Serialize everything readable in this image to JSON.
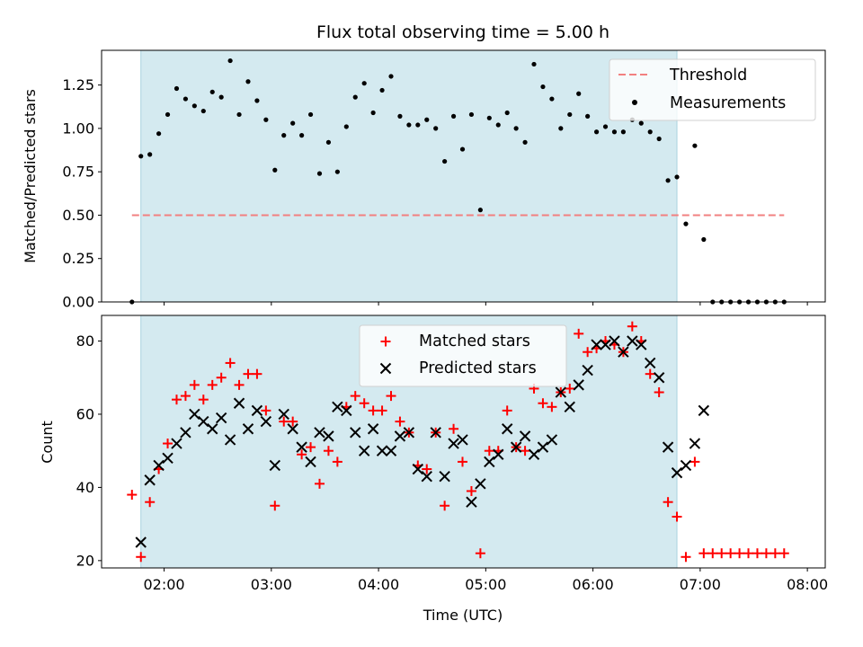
{
  "title": "Flux total observing time = 5.00 h",
  "colors": {
    "shade": "#d4eaf0",
    "shade_edge": "#a9d3de",
    "threshold": "#f28080",
    "measurement": "#000000",
    "matched": "#ff0000",
    "predicted": "#000000"
  },
  "chart_data": [
    {
      "type": "scatter",
      "ylabel": "Matched/Predicted stars",
      "xlabel": "",
      "x_unit": "hours UTC",
      "xlim": [
        "01:25",
        "08:10"
      ],
      "ylim": [
        0,
        1.45
      ],
      "yticks": [
        0.0,
        0.25,
        0.5,
        0.75,
        1.0,
        1.25
      ],
      "ytick_labels": [
        "0.00",
        "0.25",
        "0.50",
        "0.75",
        "1.00",
        "1.25"
      ],
      "shaded_interval": [
        "01:47",
        "06:47"
      ],
      "legend": {
        "position": "upper-right",
        "entries": [
          "Threshold",
          "Measurements"
        ]
      },
      "threshold": {
        "name": "Threshold",
        "y": 0.5,
        "x": [
          "01:42",
          "07:47"
        ],
        "style": "dashed"
      },
      "series": [
        {
          "name": "Measurements",
          "x": [
            "01:42",
            "01:47",
            "01:52",
            "01:57",
            "02:02",
            "02:07",
            "02:12",
            "02:17",
            "02:22",
            "02:27",
            "02:32",
            "02:37",
            "02:42",
            "02:47",
            "02:52",
            "02:57",
            "03:02",
            "03:07",
            "03:12",
            "03:17",
            "03:22",
            "03:27",
            "03:32",
            "03:37",
            "03:42",
            "03:47",
            "03:52",
            "03:57",
            "04:02",
            "04:07",
            "04:12",
            "04:17",
            "04:22",
            "04:27",
            "04:32",
            "04:37",
            "04:42",
            "04:47",
            "04:52",
            "04:57",
            "05:02",
            "05:07",
            "05:12",
            "05:17",
            "05:22",
            "05:27",
            "05:32",
            "05:37",
            "05:42",
            "05:47",
            "05:52",
            "05:57",
            "06:02",
            "06:07",
            "06:12",
            "06:17",
            "06:22",
            "06:27",
            "06:32",
            "06:37",
            "06:42",
            "06:47",
            "06:52",
            "06:57",
            "07:02",
            "07:07",
            "07:12",
            "07:17",
            "07:22",
            "07:27",
            "07:32",
            "07:37",
            "07:42",
            "07:47"
          ],
          "y": [
            0.0,
            0.84,
            0.85,
            0.97,
            1.08,
            1.23,
            1.17,
            1.13,
            1.1,
            1.21,
            1.18,
            1.39,
            1.08,
            1.27,
            1.16,
            1.05,
            0.76,
            0.96,
            1.03,
            0.96,
            1.08,
            0.74,
            0.92,
            0.75,
            1.01,
            1.18,
            1.26,
            1.09,
            1.22,
            1.3,
            1.07,
            1.02,
            1.02,
            1.05,
            1.0,
            0.81,
            1.07,
            0.88,
            1.08,
            0.53,
            1.06,
            1.02,
            1.09,
            1.0,
            0.92,
            1.37,
            1.24,
            1.17,
            1.0,
            1.08,
            1.2,
            1.07,
            0.98,
            1.01,
            0.98,
            0.98,
            1.05,
            1.03,
            0.98,
            0.94,
            0.7,
            0.72,
            0.45,
            0.9,
            0.36,
            0.0,
            0.0,
            0.0,
            0.0,
            0.0,
            0.0,
            0.0,
            0.0,
            0.0
          ]
        }
      ]
    },
    {
      "type": "scatter",
      "ylabel": "Count",
      "xlabel": "Time (UTC)",
      "x_unit": "hours UTC",
      "xlim": [
        "01:25",
        "08:10"
      ],
      "xticks": [
        "02:00",
        "03:00",
        "04:00",
        "05:00",
        "06:00",
        "07:00",
        "08:00"
      ],
      "ylim": [
        18,
        87
      ],
      "yticks": [
        20,
        40,
        60,
        80
      ],
      "ytick_labels": [
        "20",
        "40",
        "60",
        "80"
      ],
      "shaded_interval": [
        "01:47",
        "06:47"
      ],
      "legend": {
        "position": "upper-center",
        "entries": [
          "Matched stars",
          "Predicted stars"
        ]
      },
      "series": [
        {
          "name": "Matched stars",
          "marker": "plus",
          "x": [
            "01:42",
            "01:47",
            "01:52",
            "01:57",
            "02:02",
            "02:07",
            "02:12",
            "02:17",
            "02:22",
            "02:27",
            "02:32",
            "02:37",
            "02:42",
            "02:47",
            "02:52",
            "02:57",
            "03:02",
            "03:07",
            "03:12",
            "03:17",
            "03:22",
            "03:27",
            "03:32",
            "03:37",
            "03:42",
            "03:47",
            "03:52",
            "03:57",
            "04:02",
            "04:07",
            "04:12",
            "04:17",
            "04:22",
            "04:27",
            "04:32",
            "04:37",
            "04:42",
            "04:47",
            "04:52",
            "04:57",
            "05:02",
            "05:07",
            "05:12",
            "05:17",
            "05:22",
            "05:27",
            "05:32",
            "05:37",
            "05:42",
            "05:47",
            "05:52",
            "05:57",
            "06:02",
            "06:07",
            "06:12",
            "06:17",
            "06:22",
            "06:27",
            "06:32",
            "06:37",
            "06:42",
            "06:47",
            "06:52",
            "06:57",
            "07:02",
            "07:07",
            "07:12",
            "07:17",
            "07:22",
            "07:27",
            "07:32",
            "07:37",
            "07:42",
            "07:47"
          ],
          "y": [
            38,
            21,
            36,
            45,
            52,
            64,
            65,
            68,
            64,
            68,
            70,
            74,
            68,
            71,
            71,
            61,
            35,
            58,
            58,
            49,
            51,
            41,
            50,
            47,
            62,
            65,
            63,
            61,
            61,
            65,
            58,
            55,
            46,
            45,
            55,
            35,
            56,
            47,
            39,
            22,
            50,
            50,
            61,
            51,
            50,
            67,
            63,
            62,
            66,
            67,
            82,
            77,
            78,
            80,
            79,
            77,
            84,
            80,
            71,
            66,
            36,
            32,
            21,
            47,
            22,
            22,
            22,
            22,
            22,
            22,
            22,
            22,
            22,
            22
          ]
        },
        {
          "name": "Predicted stars",
          "marker": "x",
          "x": [
            "01:47",
            "01:52",
            "01:57",
            "02:02",
            "02:07",
            "02:12",
            "02:17",
            "02:22",
            "02:27",
            "02:32",
            "02:37",
            "02:42",
            "02:47",
            "02:52",
            "02:57",
            "03:02",
            "03:07",
            "03:12",
            "03:17",
            "03:22",
            "03:27",
            "03:32",
            "03:37",
            "03:42",
            "03:47",
            "03:52",
            "03:57",
            "04:02",
            "04:07",
            "04:12",
            "04:17",
            "04:22",
            "04:27",
            "04:32",
            "04:37",
            "04:42",
            "04:47",
            "04:52",
            "04:57",
            "05:02",
            "05:07",
            "05:12",
            "05:17",
            "05:22",
            "05:27",
            "05:32",
            "05:37",
            "05:42",
            "05:47",
            "05:52",
            "05:57",
            "06:02",
            "06:07",
            "06:12",
            "06:17",
            "06:22",
            "06:27",
            "06:32",
            "06:37",
            "06:42",
            "06:47",
            "06:52",
            "06:57",
            "07:02"
          ],
          "y": [
            25,
            42,
            46,
            48,
            52,
            55,
            60,
            58,
            56,
            59,
            53,
            63,
            56,
            61,
            58,
            46,
            60,
            56,
            51,
            47,
            55,
            54,
            62,
            61,
            55,
            50,
            56,
            50,
            50,
            54,
            55,
            45,
            43,
            55,
            43,
            52,
            53,
            36,
            41,
            47,
            49,
            56,
            51,
            54,
            49,
            51,
            53,
            66,
            62,
            68,
            72,
            79,
            79,
            80,
            77,
            80,
            79,
            74,
            70,
            51,
            44,
            46,
            52,
            61
          ]
        }
      ]
    }
  ]
}
